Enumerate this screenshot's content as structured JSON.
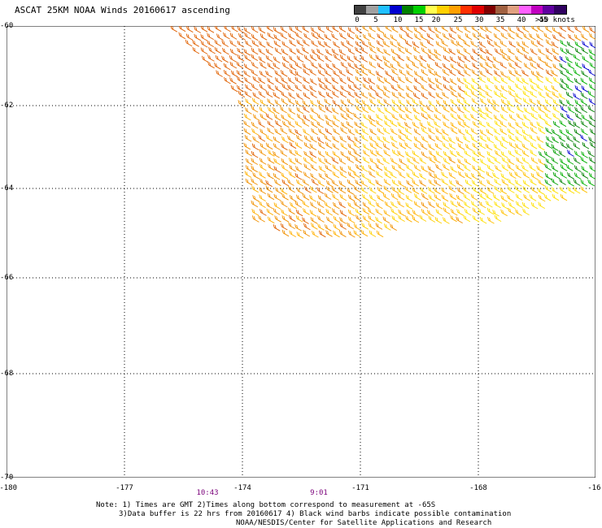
{
  "title": "ASCAT 25KM NOAA Winds 20160617 ascending",
  "legend": {
    "labels": [
      "0",
      "5",
      "10",
      "15",
      "20",
      "25",
      "30",
      "35",
      "40",
      "45",
      ">50 knots"
    ],
    "colors": [
      "#404040",
      "#a0a0a0",
      "#20c0ff",
      "#0000d0",
      "#008000",
      "#00d000",
      "#ffff50",
      "#ffd000",
      "#ffa000",
      "#ff3000",
      "#e00000",
      "#800000",
      "#a06040",
      "#e0a080",
      "#ff60ff",
      "#c000c0",
      "#6000a0",
      "#300060"
    ]
  },
  "axes": {
    "x_ticks": [
      "-180",
      "-177",
      "-174",
      "-171",
      "-168",
      "-16"
    ],
    "y_ticks": [
      "-60",
      "-62",
      "-64",
      "-66",
      "-68",
      "-70"
    ]
  },
  "times": [
    {
      "label": "10:43"
    },
    {
      "label": "9:01"
    }
  ],
  "notes": [
    "Note: 1) Times are GMT 2)Times along bottom correspond to measurement at -65S",
    "3)Data buffer is 22 hrs from 20160617 4) Black wind barbs indicate possible contamination",
    "NOAA/NESDIS/Center for Satellite Applications and Research"
  ]
}
